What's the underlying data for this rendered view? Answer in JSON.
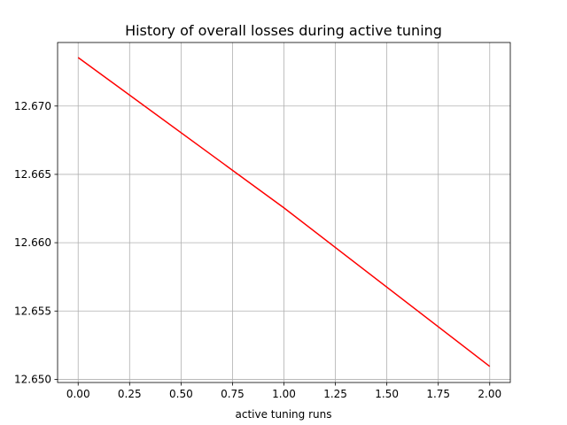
{
  "chart_data": {
    "type": "line",
    "title": "History of overall losses during active tuning",
    "xlabel": "active tuning runs",
    "ylabel": "",
    "xlim": [
      -0.1,
      2.1
    ],
    "ylim": [
      12.64977,
      12.67465
    ],
    "xticks": [
      0.0,
      0.25,
      0.5,
      0.75,
      1.0,
      1.25,
      1.5,
      1.75,
      2.0
    ],
    "xtick_labels": [
      "0.00",
      "0.25",
      "0.50",
      "0.75",
      "1.00",
      "1.25",
      "1.50",
      "1.75",
      "2.00"
    ],
    "yticks": [
      12.65,
      12.655,
      12.66,
      12.665,
      12.67
    ],
    "ytick_labels": [
      "12.650",
      "12.655",
      "12.660",
      "12.665",
      "12.670"
    ],
    "grid": true,
    "series": [
      {
        "x": [
          0,
          1,
          2
        ],
        "values": [
          12.67355,
          12.66255,
          12.65095
        ],
        "color": "#ff0000"
      }
    ]
  }
}
